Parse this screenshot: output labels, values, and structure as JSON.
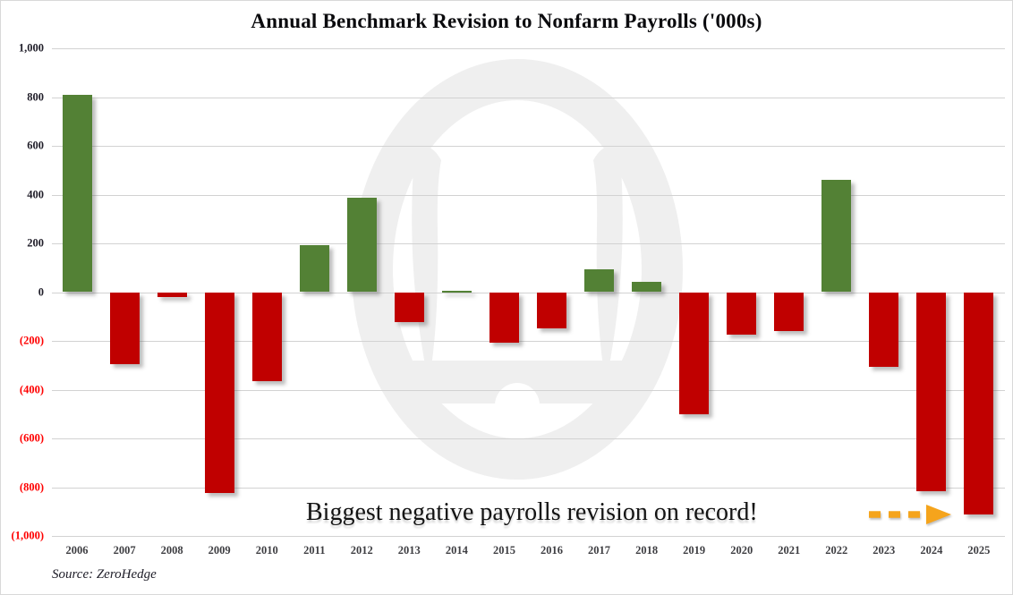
{
  "title": "Annual Benchmark Revision to Nonfarm Payrolls ('000s)",
  "source": "Source: ZeroHedge",
  "annotation": {
    "text": "Biggest negative payrolls revision on record!",
    "arrow_color": "#F5A41C"
  },
  "watermark": "zerohedge-logo",
  "colors": {
    "positive_bar": "#538135",
    "negative_bar": "#C00000",
    "positive_tick_text": "#22202B",
    "negative_tick_text": "#FF0000",
    "gridline": "#D2D2D2",
    "x_label_text": "#3E3E42",
    "watermark_gray": "#EFEFEF"
  },
  "chart_data": {
    "type": "bar",
    "title": "Annual Benchmark Revision to Nonfarm Payrolls ('000s)",
    "xlabel": "",
    "ylabel": "",
    "categories": [
      "2006",
      "2007",
      "2008",
      "2009",
      "2010",
      "2011",
      "2012",
      "2013",
      "2014",
      "2015",
      "2016",
      "2017",
      "2018",
      "2019",
      "2020",
      "2021",
      "2022",
      "2023",
      "2024",
      "2025"
    ],
    "values": [
      810,
      -297,
      -21,
      -824,
      -366,
      192,
      386,
      -124,
      7,
      -208,
      -150,
      95,
      43,
      -501,
      -173,
      -161,
      462,
      -306,
      -818,
      -911
    ],
    "ylim": [
      -1000,
      1000
    ],
    "ytick_values": [
      1000,
      800,
      600,
      400,
      200,
      0,
      -200,
      -400,
      -600,
      -800,
      -1000
    ],
    "ytick_labels": [
      "1,000",
      "800",
      "600",
      "400",
      "200",
      "0",
      "(200)",
      "(400)",
      "(600)",
      "(800)",
      "(1,000)"
    ],
    "grid": true,
    "legend": false,
    "annotation": "Biggest negative payrolls revision on record!"
  }
}
